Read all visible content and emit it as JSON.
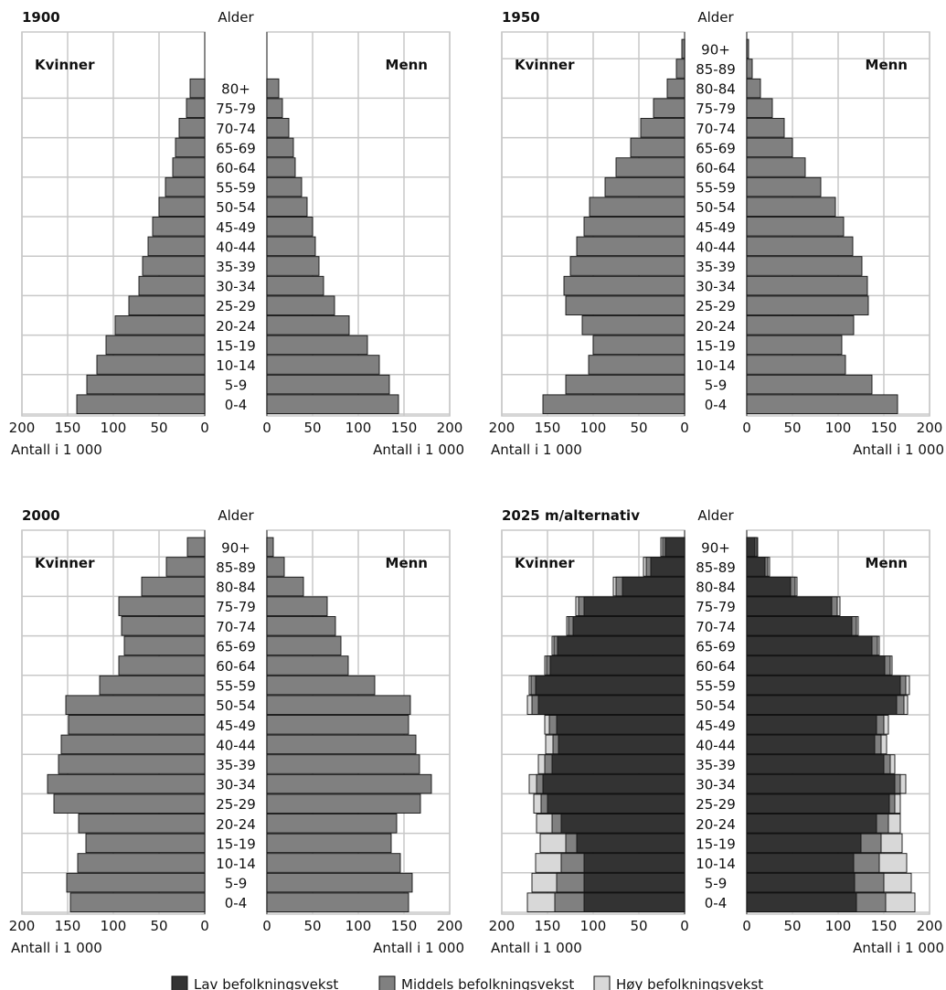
{
  "chart_data": [
    {
      "type": "bar",
      "title": "1900",
      "age_axis_label": "Alder",
      "left_label": "Kvinner",
      "right_label": "Menn",
      "xlabel": "Antall i 1 000",
      "xlim": [
        0,
        200
      ],
      "xticks": [
        "200",
        "150",
        "100",
        "50",
        "0"
      ],
      "xticks_right": [
        "0",
        "50",
        "100",
        "150",
        "200"
      ],
      "grid": true,
      "categories": [
        "0-4",
        "5-9",
        "10-14",
        "15-19",
        "20-24",
        "25-29",
        "30-34",
        "35-39",
        "40-44",
        "45-49",
        "50-54",
        "55-59",
        "60-64",
        "65-69",
        "70-74",
        "75-79",
        "80+"
      ],
      "series": [
        {
          "name": "Kvinner",
          "values": [
            140,
            129,
            118,
            108,
            98,
            83,
            72,
            68,
            62,
            57,
            50,
            43,
            35,
            32,
            28,
            20,
            16
          ]
        },
        {
          "name": "Menn",
          "values": [
            144,
            134,
            123,
            110,
            90,
            74,
            62,
            57,
            53,
            50,
            44,
            38,
            31,
            29,
            24,
            17,
            13
          ]
        }
      ]
    },
    {
      "type": "bar",
      "title": "1950",
      "age_axis_label": "Alder",
      "left_label": "Kvinner",
      "right_label": "Menn",
      "xlabel": "Antall i 1 000",
      "xlim": [
        0,
        200
      ],
      "xticks": [
        "200",
        "150",
        "100",
        "50",
        "0"
      ],
      "xticks_right": [
        "0",
        "50",
        "100",
        "150",
        "200"
      ],
      "grid": true,
      "categories": [
        "0-4",
        "5-9",
        "10-14",
        "15-19",
        "20-24",
        "25-29",
        "30-34",
        "35-39",
        "40-44",
        "45-49",
        "50-54",
        "55-59",
        "60-64",
        "65-69",
        "70-74",
        "75-79",
        "80-84",
        "85-89",
        "90+"
      ],
      "series": [
        {
          "name": "Kvinner",
          "values": [
            155,
            130,
            105,
            100,
            112,
            130,
            132,
            125,
            118,
            110,
            104,
            87,
            75,
            59,
            48,
            34,
            19,
            9,
            3
          ]
        },
        {
          "name": "Menn",
          "values": [
            165,
            137,
            108,
            104,
            117,
            133,
            132,
            126,
            116,
            106,
            97,
            81,
            64,
            50,
            41,
            28,
            15,
            6,
            2
          ]
        }
      ]
    },
    {
      "type": "bar",
      "title": "2000",
      "age_axis_label": "Alder",
      "left_label": "Kvinner",
      "right_label": "Menn",
      "xlabel": "Antall i 1 000",
      "xlim": [
        0,
        200
      ],
      "xticks": [
        "200",
        "150",
        "100",
        "50",
        "0"
      ],
      "xticks_right": [
        "0",
        "50",
        "100",
        "150",
        "200"
      ],
      "grid": true,
      "categories": [
        "0-4",
        "5-9",
        "10-14",
        "15-19",
        "20-24",
        "25-29",
        "30-34",
        "35-39",
        "40-44",
        "45-49",
        "50-54",
        "55-59",
        "60-64",
        "65-69",
        "70-74",
        "75-79",
        "80-84",
        "85-89",
        "90+"
      ],
      "series": [
        {
          "name": "Kvinner",
          "values": [
            147,
            151,
            139,
            130,
            138,
            165,
            172,
            160,
            157,
            149,
            152,
            115,
            94,
            88,
            91,
            94,
            69,
            42,
            19
          ]
        },
        {
          "name": "Menn",
          "values": [
            155,
            159,
            146,
            136,
            142,
            168,
            180,
            167,
            163,
            155,
            157,
            118,
            89,
            81,
            75,
            66,
            40,
            19,
            7
          ]
        }
      ]
    },
    {
      "type": "bar",
      "title": "2025 m/alternativ",
      "age_axis_label": "Alder",
      "left_label": "Kvinner",
      "right_label": "Menn",
      "xlabel": "Antall i 1 000",
      "xlim": [
        0,
        200
      ],
      "xticks": [
        "200",
        "150",
        "100",
        "50",
        "0"
      ],
      "xticks_right": [
        "0",
        "50",
        "100",
        "150",
        "200"
      ],
      "grid": true,
      "categories": [
        "0-4",
        "5-9",
        "10-14",
        "15-19",
        "20-24",
        "25-29",
        "30-34",
        "35-39",
        "40-44",
        "45-49",
        "50-54",
        "55-59",
        "60-64",
        "65-69",
        "70-74",
        "75-79",
        "80-84",
        "85-89",
        "90+"
      ],
      "series": [
        {
          "name": "Lav befolkningsvekst",
          "side": "Kvinner",
          "values": [
            110,
            110,
            110,
            118,
            135,
            150,
            155,
            145,
            138,
            140,
            160,
            163,
            147,
            139,
            122,
            110,
            68,
            37,
            21
          ]
        },
        {
          "name": "Middels befolkningsvekst",
          "side": "Kvinner",
          "values": [
            142,
            140,
            135,
            130,
            145,
            157,
            162,
            153,
            144,
            148,
            167,
            168,
            151,
            143,
            127,
            116,
            75,
            42,
            24
          ]
        },
        {
          "name": "Høy befolkningsvekst",
          "side": "Kvinner",
          "values": [
            172,
            167,
            163,
            158,
            162,
            165,
            170,
            160,
            152,
            153,
            172,
            170,
            153,
            145,
            129,
            119,
            78,
            45,
            26
          ]
        },
        {
          "name": "Lav befolkningsvekst",
          "side": "Menn",
          "values": [
            120,
            118,
            117,
            125,
            142,
            156,
            162,
            150,
            140,
            142,
            164,
            168,
            151,
            137,
            115,
            93,
            48,
            20,
            9
          ]
        },
        {
          "name": "Middels befolkningsvekst",
          "side": "Menn",
          "values": [
            152,
            150,
            145,
            147,
            155,
            162,
            168,
            157,
            147,
            150,
            172,
            174,
            157,
            143,
            120,
            99,
            53,
            23,
            11
          ]
        },
        {
          "name": "Høy befolkningsvekst",
          "side": "Menn",
          "values": [
            184,
            180,
            175,
            170,
            168,
            168,
            174,
            162,
            153,
            155,
            176,
            178,
            159,
            145,
            122,
            102,
            55,
            25,
            12
          ]
        }
      ]
    }
  ],
  "legend": {
    "items": [
      {
        "label": "Lav befolkningsvekst",
        "color": "#333333"
      },
      {
        "label": "Middels befolkningsvekst",
        "color": "#808080"
      },
      {
        "label": "Høy befolkningsvekst",
        "color": "#d8d8d8"
      }
    ]
  },
  "colors": {
    "bar": "#808080",
    "grid": "#c8c8c8",
    "axis": "#555555"
  }
}
